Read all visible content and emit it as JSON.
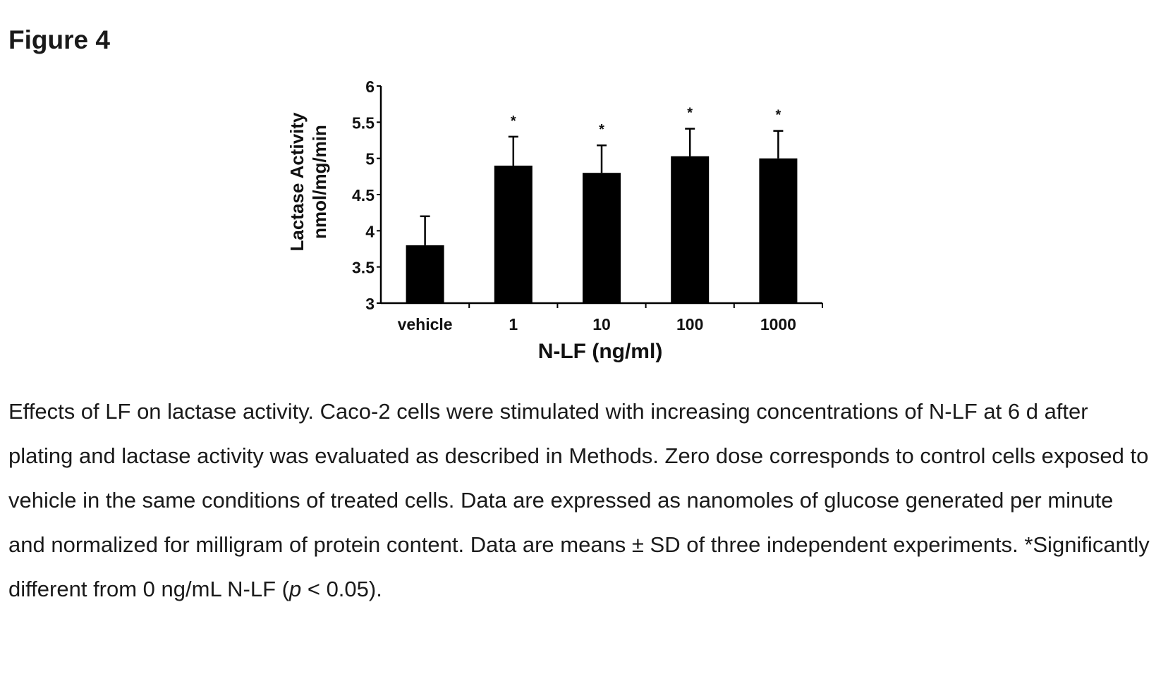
{
  "figure": {
    "title": "Figure 4"
  },
  "caption": {
    "part1": "Effects of LF on lactase activity. Caco-2 cells were stimulated with increasing concentrations of N-LF at 6 d after plating and lactase activity was evaluated as described in Methods. Zero dose corresponds to control cells exposed to vehicle in the same conditions of treated cells. Data are expressed as nanomoles of glucose generated per minute and normalized for milligram of protein content. Data are means ± SD of three independent experiments. *Significantly different from 0 ng/mL N-LF (",
    "p_symbol": "p",
    "part2": " < 0.05)."
  },
  "chart_data": {
    "type": "bar",
    "title": "",
    "xlabel": "N-LF (ng/ml)",
    "ylabel": "Lactase Activity",
    "ylabel_unit": "nmol/mg/min",
    "categories": [
      "vehicle",
      "1",
      "10",
      "100",
      "1000"
    ],
    "values": [
      3.8,
      4.9,
      4.8,
      5.03,
      5.0
    ],
    "errors": [
      0.4,
      0.4,
      0.38,
      0.38,
      0.38
    ],
    "significant": [
      false,
      true,
      true,
      true,
      true
    ],
    "significance_marker": "*",
    "ylim": [
      3,
      6
    ],
    "yticks": [
      "3",
      "3.5",
      "4",
      "4.5",
      "5",
      "5.5",
      "6"
    ],
    "grid": false,
    "legend": "none",
    "bar_color": "#000000"
  }
}
